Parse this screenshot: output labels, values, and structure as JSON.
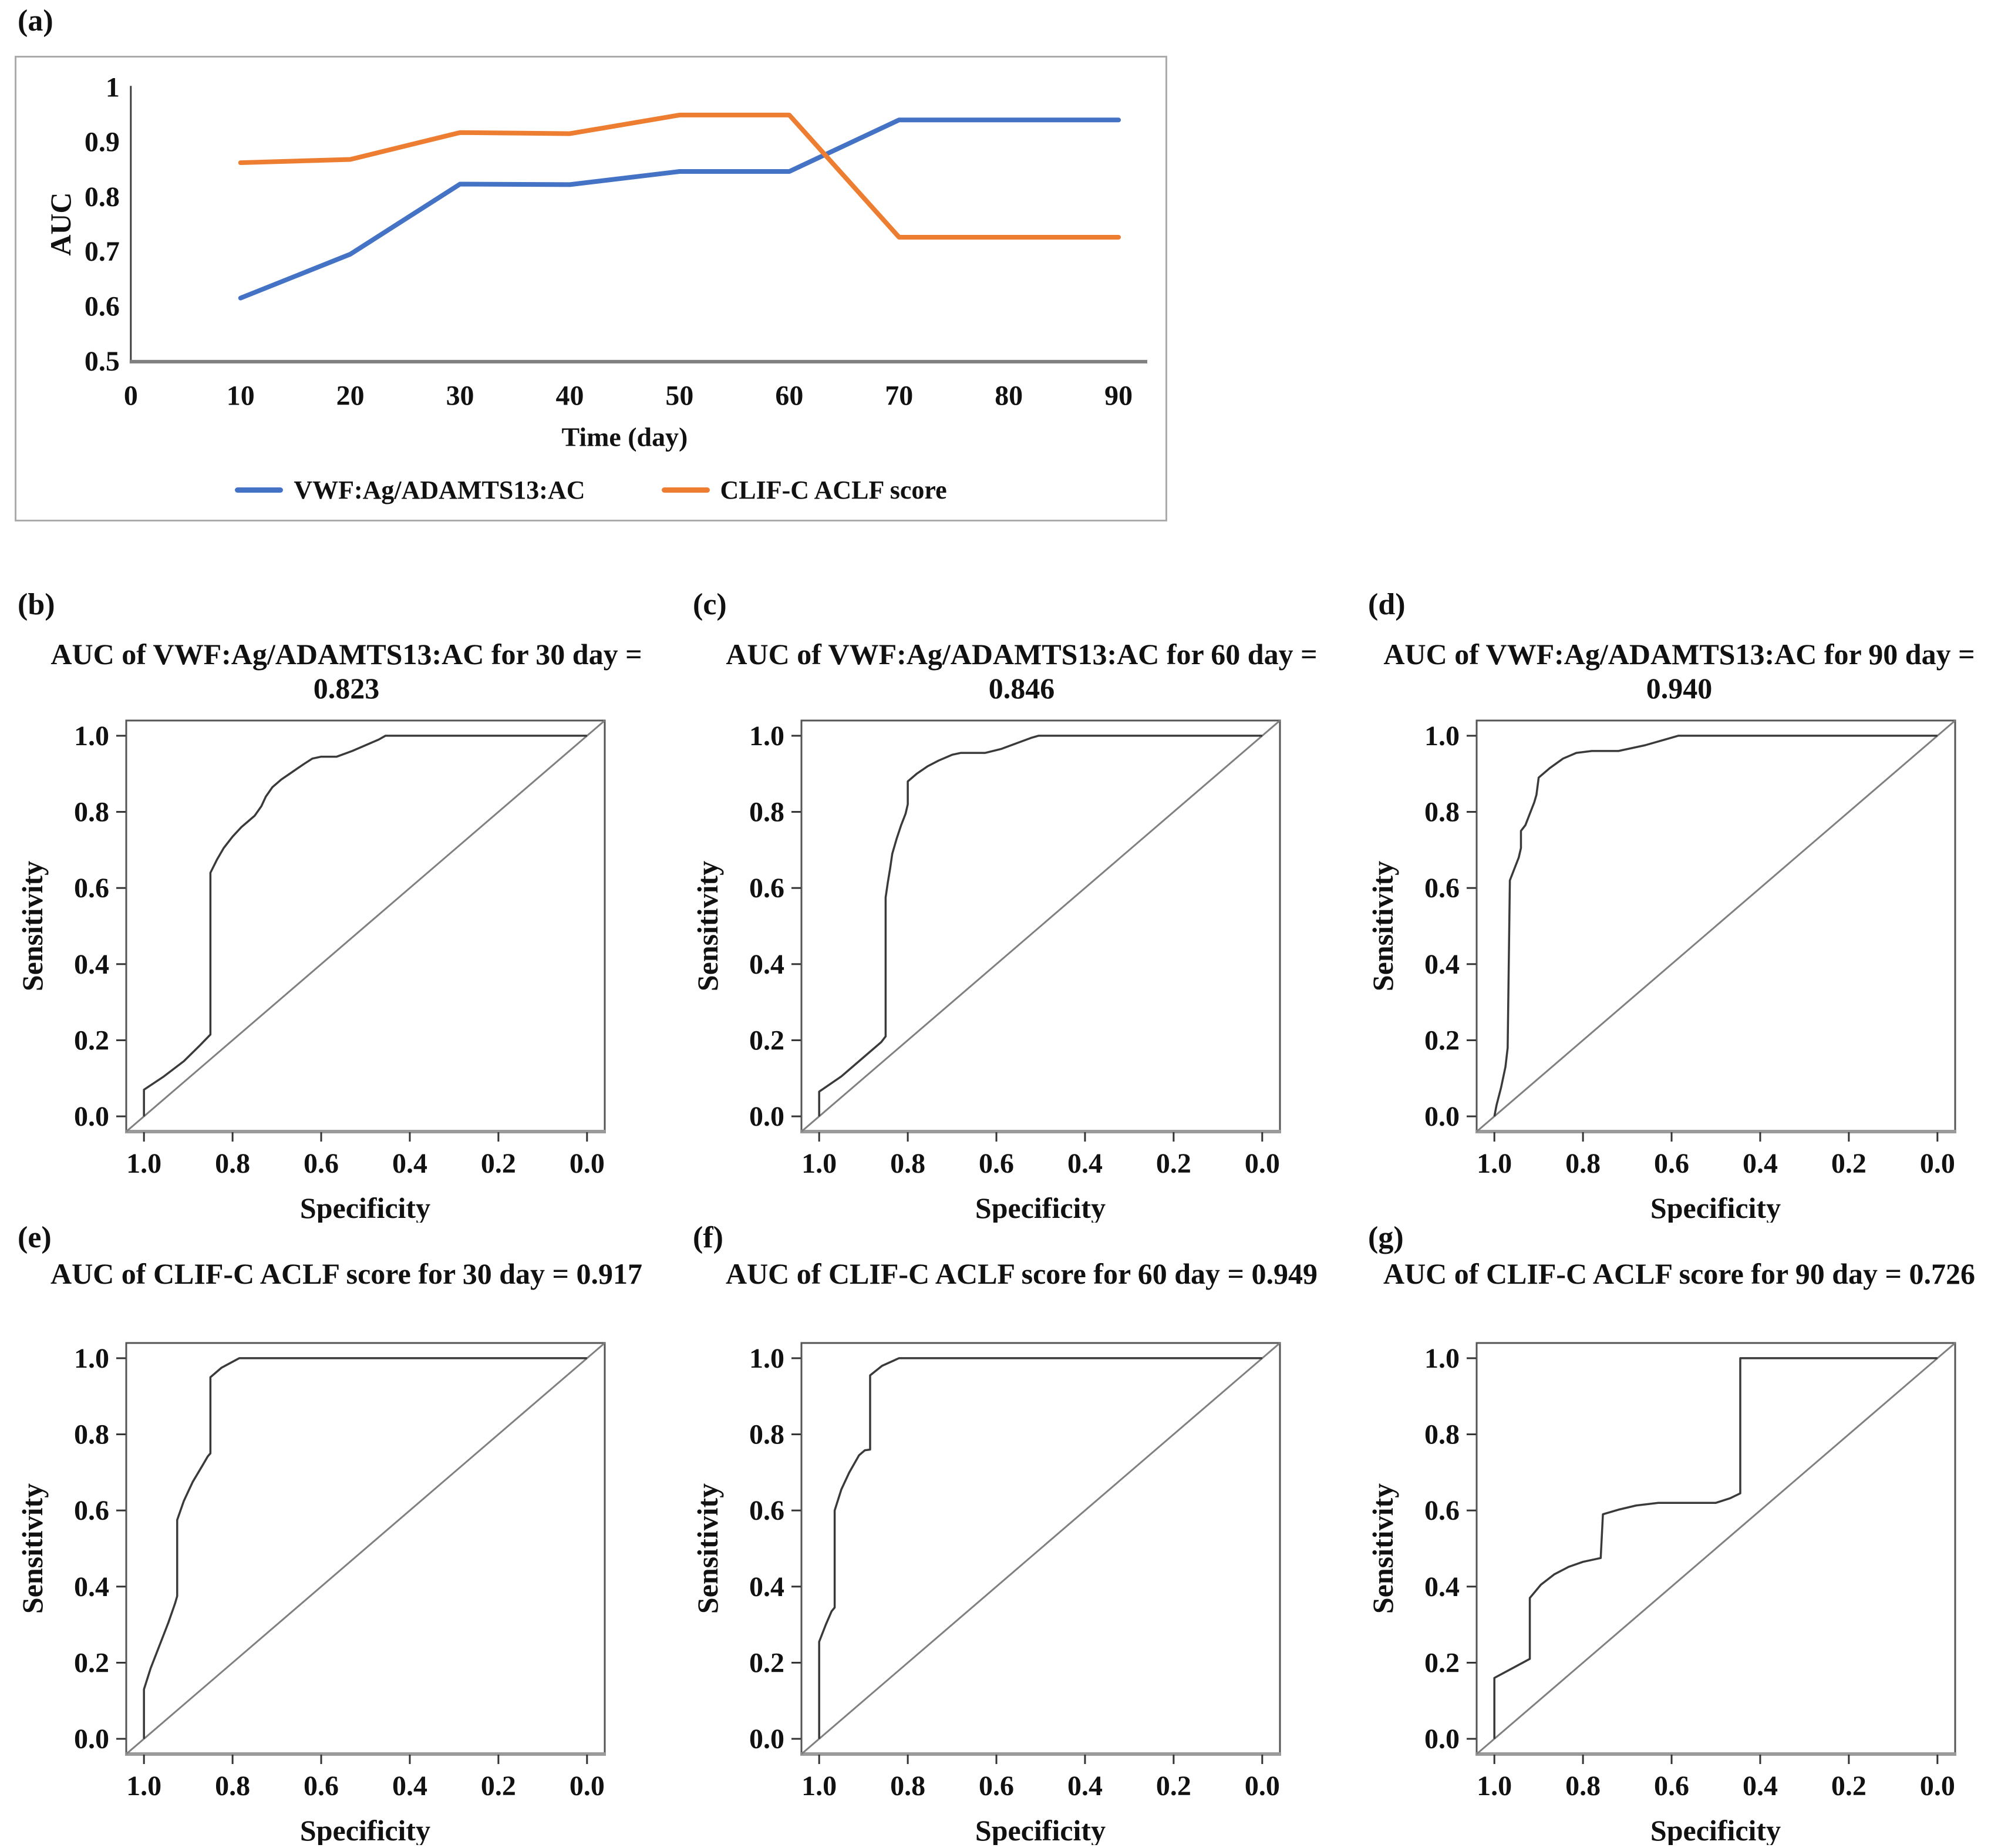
{
  "figure_label_letters": [
    "(a)",
    "(b)",
    "(c)",
    "(d)",
    "(e)",
    "(f)",
    "(g)"
  ],
  "colors": {
    "series_blue": "#4472C4",
    "series_orange": "#ED7D31",
    "axis_grey": "#808080",
    "panel_box_border": "#ababab",
    "roc_curve": "#3a3a3a",
    "roc_diagonal": "#808080"
  },
  "chart_data": [
    {
      "id": "a",
      "letter": "(a)",
      "type": "line",
      "title": "",
      "xlabel": "Time (day)",
      "ylabel": "AUC",
      "xlim": [
        0,
        90
      ],
      "ylim": [
        0.5,
        1.0
      ],
      "grid": false,
      "legend_position": "bottom",
      "x": [
        10,
        20,
        30,
        40,
        50,
        60,
        70,
        80,
        90
      ],
      "x_ticks": [
        "0",
        "10",
        "20",
        "30",
        "40",
        "50",
        "60",
        "70",
        "80",
        "90"
      ],
      "y_ticks": [
        "0.5",
        "0.6",
        "0.7",
        "0.8",
        "0.9",
        "1"
      ],
      "series": [
        {
          "name": "VWF:Ag/ADAMTS13:AC",
          "color": "#4472C4",
          "values": [
            0.615,
            0.695,
            0.823,
            0.822,
            0.846,
            0.846,
            0.94,
            0.94,
            0.94
          ]
        },
        {
          "name": "CLIF-C ACLF score",
          "color": "#ED7D31",
          "values": [
            0.862,
            0.868,
            0.917,
            0.915,
            0.949,
            0.949,
            0.726,
            0.726,
            0.726
          ]
        }
      ]
    },
    {
      "id": "b",
      "letter": "(b)",
      "type": "line",
      "subtype": "roc",
      "title": "AUC of VWF:Ag/ADAMTS13:AC for 30 day = 0.823",
      "auc": 0.823,
      "xlabel": "Specificity",
      "ylabel": "Sensitivity",
      "x_axis_reversed": true,
      "diagonal_reference": true,
      "x_ticks": [
        "1.0",
        "0.8",
        "0.6",
        "0.4",
        "0.2",
        "0.0"
      ],
      "y_ticks": [
        "0.0",
        "0.2",
        "0.4",
        "0.6",
        "0.8",
        "1.0"
      ],
      "points": [
        [
          1.0,
          0.0
        ],
        [
          1.0,
          0.07
        ],
        [
          0.955,
          0.105
        ],
        [
          0.91,
          0.145
        ],
        [
          0.875,
          0.185
        ],
        [
          0.85,
          0.215
        ],
        [
          0.85,
          0.64
        ],
        [
          0.835,
          0.675
        ],
        [
          0.82,
          0.705
        ],
        [
          0.8,
          0.735
        ],
        [
          0.78,
          0.76
        ],
        [
          0.765,
          0.775
        ],
        [
          0.75,
          0.79
        ],
        [
          0.735,
          0.815
        ],
        [
          0.725,
          0.84
        ],
        [
          0.71,
          0.865
        ],
        [
          0.69,
          0.885
        ],
        [
          0.665,
          0.905
        ],
        [
          0.64,
          0.925
        ],
        [
          0.62,
          0.94
        ],
        [
          0.6,
          0.945
        ],
        [
          0.565,
          0.945
        ],
        [
          0.53,
          0.96
        ],
        [
          0.5,
          0.975
        ],
        [
          0.47,
          0.99
        ],
        [
          0.455,
          1.0
        ],
        [
          0.0,
          1.0
        ]
      ]
    },
    {
      "id": "c",
      "letter": "(c)",
      "type": "line",
      "subtype": "roc",
      "title": "AUC of VWF:Ag/ADAMTS13:AC for 60 day = 0.846",
      "auc": 0.846,
      "xlabel": "Specificity",
      "ylabel": "Sensitivity",
      "x_axis_reversed": true,
      "diagonal_reference": true,
      "x_ticks": [
        "1.0",
        "0.8",
        "0.6",
        "0.4",
        "0.2",
        "0.0"
      ],
      "y_ticks": [
        "0.0",
        "0.2",
        "0.4",
        "0.6",
        "0.8",
        "1.0"
      ],
      "points": [
        [
          1.0,
          0.0
        ],
        [
          1.0,
          0.065
        ],
        [
          0.95,
          0.105
        ],
        [
          0.9,
          0.155
        ],
        [
          0.86,
          0.195
        ],
        [
          0.85,
          0.21
        ],
        [
          0.85,
          0.575
        ],
        [
          0.845,
          0.615
        ],
        [
          0.84,
          0.65
        ],
        [
          0.835,
          0.69
        ],
        [
          0.825,
          0.73
        ],
        [
          0.815,
          0.765
        ],
        [
          0.805,
          0.795
        ],
        [
          0.8,
          0.82
        ],
        [
          0.8,
          0.88
        ],
        [
          0.78,
          0.9
        ],
        [
          0.755,
          0.92
        ],
        [
          0.73,
          0.935
        ],
        [
          0.7,
          0.95
        ],
        [
          0.68,
          0.955
        ],
        [
          0.625,
          0.955
        ],
        [
          0.59,
          0.965
        ],
        [
          0.555,
          0.98
        ],
        [
          0.52,
          0.995
        ],
        [
          0.505,
          1.0
        ],
        [
          0.0,
          1.0
        ]
      ]
    },
    {
      "id": "d",
      "letter": "(d)",
      "type": "line",
      "subtype": "roc",
      "title": "AUC of VWF:Ag/ADAMTS13:AC for 90 day = 0.940",
      "auc": 0.94,
      "xlabel": "Specificity",
      "ylabel": "Sensitivity",
      "x_axis_reversed": true,
      "diagonal_reference": true,
      "x_ticks": [
        "1.0",
        "0.8",
        "0.6",
        "0.4",
        "0.2",
        "0.0"
      ],
      "y_ticks": [
        "0.0",
        "0.2",
        "0.4",
        "0.6",
        "0.8",
        "1.0"
      ],
      "points": [
        [
          1.0,
          0.0
        ],
        [
          0.995,
          0.03
        ],
        [
          0.985,
          0.075
        ],
        [
          0.975,
          0.13
        ],
        [
          0.97,
          0.18
        ],
        [
          0.965,
          0.62
        ],
        [
          0.955,
          0.65
        ],
        [
          0.945,
          0.68
        ],
        [
          0.94,
          0.705
        ],
        [
          0.94,
          0.75
        ],
        [
          0.93,
          0.765
        ],
        [
          0.92,
          0.795
        ],
        [
          0.91,
          0.825
        ],
        [
          0.905,
          0.845
        ],
        [
          0.9,
          0.89
        ],
        [
          0.875,
          0.915
        ],
        [
          0.845,
          0.94
        ],
        [
          0.815,
          0.955
        ],
        [
          0.78,
          0.96
        ],
        [
          0.72,
          0.96
        ],
        [
          0.66,
          0.975
        ],
        [
          0.615,
          0.99
        ],
        [
          0.585,
          1.0
        ],
        [
          0.0,
          1.0
        ]
      ]
    },
    {
      "id": "e",
      "letter": "(e)",
      "type": "line",
      "subtype": "roc",
      "title": "AUC of CLIF-C ACLF score for 30 day = 0.917",
      "auc": 0.917,
      "xlabel": "Specificity",
      "ylabel": "Sensitivity",
      "x_axis_reversed": true,
      "diagonal_reference": true,
      "x_ticks": [
        "1.0",
        "0.8",
        "0.6",
        "0.4",
        "0.2",
        "0.0"
      ],
      "y_ticks": [
        "0.0",
        "0.2",
        "0.4",
        "0.6",
        "0.8",
        "1.0"
      ],
      "points": [
        [
          1.0,
          0.0
        ],
        [
          1.0,
          0.13
        ],
        [
          0.985,
          0.185
        ],
        [
          0.965,
          0.245
        ],
        [
          0.945,
          0.305
        ],
        [
          0.93,
          0.355
        ],
        [
          0.925,
          0.375
        ],
        [
          0.925,
          0.575
        ],
        [
          0.91,
          0.625
        ],
        [
          0.89,
          0.675
        ],
        [
          0.868,
          0.718
        ],
        [
          0.856,
          0.742
        ],
        [
          0.85,
          0.75
        ],
        [
          0.85,
          0.95
        ],
        [
          0.825,
          0.975
        ],
        [
          0.785,
          1.0
        ],
        [
          0.0,
          1.0
        ]
      ]
    },
    {
      "id": "f",
      "letter": "(f)",
      "type": "line",
      "subtype": "roc",
      "title": "AUC of CLIF-C ACLF score for 60 day = 0.949",
      "auc": 0.949,
      "xlabel": "Specificity",
      "ylabel": "Sensitivity",
      "x_axis_reversed": true,
      "diagonal_reference": true,
      "x_ticks": [
        "1.0",
        "0.8",
        "0.6",
        "0.4",
        "0.2",
        "0.0"
      ],
      "y_ticks": [
        "0.0",
        "0.2",
        "0.4",
        "0.6",
        "0.8",
        "1.0"
      ],
      "points": [
        [
          1.0,
          0.0
        ],
        [
          1.0,
          0.255
        ],
        [
          0.985,
          0.3
        ],
        [
          0.972,
          0.335
        ],
        [
          0.965,
          0.345
        ],
        [
          0.965,
          0.6
        ],
        [
          0.95,
          0.655
        ],
        [
          0.932,
          0.7
        ],
        [
          0.91,
          0.745
        ],
        [
          0.897,
          0.758
        ],
        [
          0.885,
          0.76
        ],
        [
          0.885,
          0.955
        ],
        [
          0.858,
          0.98
        ],
        [
          0.82,
          1.0
        ],
        [
          0.0,
          1.0
        ]
      ]
    },
    {
      "id": "g",
      "letter": "(g)",
      "type": "line",
      "subtype": "roc",
      "title": "AUC of CLIF-C ACLF score for 90 day = 0.726",
      "auc": 0.726,
      "xlabel": "Specificity",
      "ylabel": "Sensitivity",
      "x_axis_reversed": true,
      "diagonal_reference": true,
      "x_ticks": [
        "1.0",
        "0.8",
        "0.6",
        "0.4",
        "0.2",
        "0.0"
      ],
      "y_ticks": [
        "0.0",
        "0.2",
        "0.4",
        "0.6",
        "0.8",
        "1.0"
      ],
      "points": [
        [
          1.0,
          0.0
        ],
        [
          1.0,
          0.16
        ],
        [
          0.96,
          0.185
        ],
        [
          0.92,
          0.21
        ],
        [
          0.92,
          0.37
        ],
        [
          0.895,
          0.405
        ],
        [
          0.865,
          0.432
        ],
        [
          0.832,
          0.452
        ],
        [
          0.8,
          0.465
        ],
        [
          0.76,
          0.475
        ],
        [
          0.755,
          0.59
        ],
        [
          0.72,
          0.602
        ],
        [
          0.68,
          0.613
        ],
        [
          0.63,
          0.62
        ],
        [
          0.5,
          0.62
        ],
        [
          0.468,
          0.632
        ],
        [
          0.445,
          0.645
        ],
        [
          0.445,
          1.0
        ],
        [
          0.0,
          1.0
        ]
      ]
    }
  ]
}
